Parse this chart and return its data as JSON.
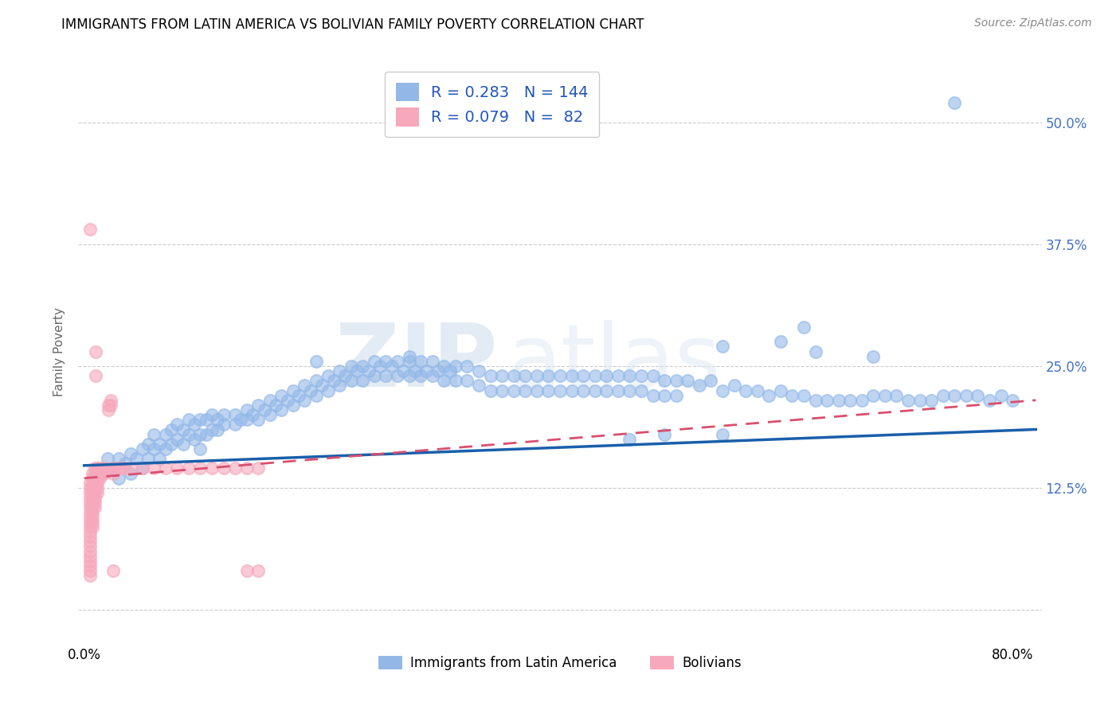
{
  "title": "IMMIGRANTS FROM LATIN AMERICA VS BOLIVIAN FAMILY POVERTY CORRELATION CHART",
  "source": "Source: ZipAtlas.com",
  "ylabel": "Family Poverty",
  "yticks": [
    0.0,
    0.125,
    0.25,
    0.375,
    0.5
  ],
  "ytick_labels": [
    "",
    "12.5%",
    "25.0%",
    "37.5%",
    "50.0%"
  ],
  "xlim": [
    -0.005,
    0.825
  ],
  "ylim": [
    -0.03,
    0.56
  ],
  "blue_R": "0.283",
  "blue_N": "144",
  "pink_R": "0.079",
  "pink_N": "82",
  "blue_color": "#93b8e8",
  "pink_color": "#f7a8bc",
  "blue_line_color": "#1a5faa",
  "pink_line_color": "#d94f6e",
  "watermark_zip": "ZIP",
  "watermark_atlas": "atlas",
  "legend_label_blue": "Immigrants from Latin America",
  "legend_label_pink": "Bolivians",
  "blue_scatter": [
    [
      0.02,
      0.155
    ],
    [
      0.025,
      0.145
    ],
    [
      0.03,
      0.155
    ],
    [
      0.03,
      0.135
    ],
    [
      0.035,
      0.15
    ],
    [
      0.04,
      0.16
    ],
    [
      0.04,
      0.14
    ],
    [
      0.045,
      0.155
    ],
    [
      0.05,
      0.165
    ],
    [
      0.05,
      0.145
    ],
    [
      0.055,
      0.17
    ],
    [
      0.055,
      0.155
    ],
    [
      0.06,
      0.18
    ],
    [
      0.06,
      0.165
    ],
    [
      0.065,
      0.17
    ],
    [
      0.065,
      0.155
    ],
    [
      0.07,
      0.18
    ],
    [
      0.07,
      0.165
    ],
    [
      0.075,
      0.185
    ],
    [
      0.075,
      0.17
    ],
    [
      0.08,
      0.19
    ],
    [
      0.08,
      0.175
    ],
    [
      0.085,
      0.185
    ],
    [
      0.085,
      0.17
    ],
    [
      0.09,
      0.195
    ],
    [
      0.09,
      0.18
    ],
    [
      0.095,
      0.19
    ],
    [
      0.095,
      0.175
    ],
    [
      0.1,
      0.195
    ],
    [
      0.1,
      0.18
    ],
    [
      0.1,
      0.165
    ],
    [
      0.105,
      0.195
    ],
    [
      0.105,
      0.18
    ],
    [
      0.11,
      0.2
    ],
    [
      0.11,
      0.185
    ],
    [
      0.115,
      0.195
    ],
    [
      0.115,
      0.185
    ],
    [
      0.12,
      0.2
    ],
    [
      0.12,
      0.19
    ],
    [
      0.13,
      0.2
    ],
    [
      0.13,
      0.19
    ],
    [
      0.135,
      0.195
    ],
    [
      0.14,
      0.205
    ],
    [
      0.14,
      0.195
    ],
    [
      0.145,
      0.2
    ],
    [
      0.15,
      0.21
    ],
    [
      0.15,
      0.195
    ],
    [
      0.155,
      0.205
    ],
    [
      0.16,
      0.215
    ],
    [
      0.16,
      0.2
    ],
    [
      0.165,
      0.21
    ],
    [
      0.17,
      0.22
    ],
    [
      0.17,
      0.205
    ],
    [
      0.175,
      0.215
    ],
    [
      0.18,
      0.225
    ],
    [
      0.18,
      0.21
    ],
    [
      0.185,
      0.22
    ],
    [
      0.19,
      0.23
    ],
    [
      0.19,
      0.215
    ],
    [
      0.195,
      0.225
    ],
    [
      0.2,
      0.235
    ],
    [
      0.2,
      0.22
    ],
    [
      0.205,
      0.23
    ],
    [
      0.21,
      0.24
    ],
    [
      0.21,
      0.225
    ],
    [
      0.215,
      0.235
    ],
    [
      0.22,
      0.245
    ],
    [
      0.22,
      0.23
    ],
    [
      0.225,
      0.24
    ],
    [
      0.23,
      0.25
    ],
    [
      0.23,
      0.235
    ],
    [
      0.235,
      0.245
    ],
    [
      0.24,
      0.25
    ],
    [
      0.24,
      0.235
    ],
    [
      0.245,
      0.245
    ],
    [
      0.25,
      0.255
    ],
    [
      0.25,
      0.24
    ],
    [
      0.255,
      0.25
    ],
    [
      0.26,
      0.255
    ],
    [
      0.26,
      0.24
    ],
    [
      0.265,
      0.25
    ],
    [
      0.27,
      0.255
    ],
    [
      0.27,
      0.24
    ],
    [
      0.275,
      0.245
    ],
    [
      0.28,
      0.255
    ],
    [
      0.28,
      0.24
    ],
    [
      0.285,
      0.245
    ],
    [
      0.29,
      0.255
    ],
    [
      0.29,
      0.24
    ],
    [
      0.295,
      0.245
    ],
    [
      0.3,
      0.255
    ],
    [
      0.3,
      0.24
    ],
    [
      0.305,
      0.245
    ],
    [
      0.31,
      0.25
    ],
    [
      0.31,
      0.235
    ],
    [
      0.315,
      0.245
    ],
    [
      0.32,
      0.25
    ],
    [
      0.32,
      0.235
    ],
    [
      0.33,
      0.25
    ],
    [
      0.33,
      0.235
    ],
    [
      0.34,
      0.245
    ],
    [
      0.34,
      0.23
    ],
    [
      0.35,
      0.24
    ],
    [
      0.35,
      0.225
    ],
    [
      0.36,
      0.24
    ],
    [
      0.36,
      0.225
    ],
    [
      0.37,
      0.24
    ],
    [
      0.37,
      0.225
    ],
    [
      0.38,
      0.24
    ],
    [
      0.38,
      0.225
    ],
    [
      0.39,
      0.24
    ],
    [
      0.39,
      0.225
    ],
    [
      0.4,
      0.24
    ],
    [
      0.4,
      0.225
    ],
    [
      0.41,
      0.24
    ],
    [
      0.41,
      0.225
    ],
    [
      0.42,
      0.24
    ],
    [
      0.42,
      0.225
    ],
    [
      0.43,
      0.24
    ],
    [
      0.43,
      0.225
    ],
    [
      0.44,
      0.24
    ],
    [
      0.44,
      0.225
    ],
    [
      0.45,
      0.24
    ],
    [
      0.45,
      0.225
    ],
    [
      0.46,
      0.24
    ],
    [
      0.46,
      0.225
    ],
    [
      0.47,
      0.24
    ],
    [
      0.47,
      0.225
    ],
    [
      0.48,
      0.24
    ],
    [
      0.48,
      0.225
    ],
    [
      0.49,
      0.24
    ],
    [
      0.49,
      0.22
    ],
    [
      0.5,
      0.235
    ],
    [
      0.5,
      0.22
    ],
    [
      0.51,
      0.235
    ],
    [
      0.51,
      0.22
    ],
    [
      0.52,
      0.235
    ],
    [
      0.53,
      0.23
    ],
    [
      0.54,
      0.235
    ],
    [
      0.55,
      0.225
    ],
    [
      0.56,
      0.23
    ],
    [
      0.57,
      0.225
    ],
    [
      0.58,
      0.225
    ],
    [
      0.59,
      0.22
    ],
    [
      0.6,
      0.225
    ],
    [
      0.61,
      0.22
    ],
    [
      0.62,
      0.22
    ],
    [
      0.63,
      0.215
    ],
    [
      0.64,
      0.215
    ],
    [
      0.65,
      0.215
    ],
    [
      0.66,
      0.215
    ],
    [
      0.67,
      0.215
    ],
    [
      0.68,
      0.22
    ],
    [
      0.69,
      0.22
    ],
    [
      0.7,
      0.22
    ],
    [
      0.71,
      0.215
    ],
    [
      0.72,
      0.215
    ],
    [
      0.73,
      0.215
    ],
    [
      0.74,
      0.22
    ],
    [
      0.75,
      0.22
    ],
    [
      0.76,
      0.22
    ],
    [
      0.77,
      0.22
    ],
    [
      0.78,
      0.215
    ],
    [
      0.79,
      0.22
    ],
    [
      0.8,
      0.215
    ],
    [
      0.55,
      0.27
    ],
    [
      0.6,
      0.275
    ],
    [
      0.63,
      0.265
    ],
    [
      0.68,
      0.26
    ],
    [
      0.2,
      0.255
    ],
    [
      0.28,
      0.26
    ],
    [
      0.62,
      0.29
    ],
    [
      0.55,
      0.18
    ],
    [
      0.47,
      0.175
    ],
    [
      0.5,
      0.18
    ],
    [
      0.75,
      0.52
    ]
  ],
  "pink_scatter": [
    [
      0.005,
      0.13
    ],
    [
      0.005,
      0.125
    ],
    [
      0.005,
      0.12
    ],
    [
      0.005,
      0.115
    ],
    [
      0.005,
      0.11
    ],
    [
      0.005,
      0.105
    ],
    [
      0.005,
      0.1
    ],
    [
      0.005,
      0.095
    ],
    [
      0.005,
      0.09
    ],
    [
      0.005,
      0.085
    ],
    [
      0.005,
      0.08
    ],
    [
      0.005,
      0.075
    ],
    [
      0.005,
      0.07
    ],
    [
      0.005,
      0.065
    ],
    [
      0.005,
      0.06
    ],
    [
      0.005,
      0.055
    ],
    [
      0.005,
      0.05
    ],
    [
      0.005,
      0.045
    ],
    [
      0.005,
      0.04
    ],
    [
      0.005,
      0.035
    ],
    [
      0.007,
      0.14
    ],
    [
      0.007,
      0.135
    ],
    [
      0.007,
      0.13
    ],
    [
      0.007,
      0.125
    ],
    [
      0.007,
      0.12
    ],
    [
      0.007,
      0.115
    ],
    [
      0.007,
      0.11
    ],
    [
      0.007,
      0.105
    ],
    [
      0.007,
      0.1
    ],
    [
      0.007,
      0.095
    ],
    [
      0.007,
      0.09
    ],
    [
      0.007,
      0.085
    ],
    [
      0.009,
      0.145
    ],
    [
      0.009,
      0.14
    ],
    [
      0.009,
      0.135
    ],
    [
      0.009,
      0.13
    ],
    [
      0.009,
      0.125
    ],
    [
      0.009,
      0.12
    ],
    [
      0.009,
      0.115
    ],
    [
      0.009,
      0.11
    ],
    [
      0.009,
      0.105
    ],
    [
      0.011,
      0.145
    ],
    [
      0.011,
      0.14
    ],
    [
      0.011,
      0.135
    ],
    [
      0.011,
      0.13
    ],
    [
      0.011,
      0.125
    ],
    [
      0.011,
      0.12
    ],
    [
      0.013,
      0.145
    ],
    [
      0.013,
      0.14
    ],
    [
      0.013,
      0.135
    ],
    [
      0.015,
      0.145
    ],
    [
      0.015,
      0.14
    ],
    [
      0.017,
      0.145
    ],
    [
      0.017,
      0.14
    ],
    [
      0.019,
      0.145
    ],
    [
      0.021,
      0.21
    ],
    [
      0.021,
      0.205
    ],
    [
      0.023,
      0.215
    ],
    [
      0.023,
      0.21
    ],
    [
      0.025,
      0.145
    ],
    [
      0.025,
      0.14
    ],
    [
      0.027,
      0.145
    ],
    [
      0.03,
      0.145
    ],
    [
      0.032,
      0.145
    ],
    [
      0.035,
      0.145
    ],
    [
      0.04,
      0.145
    ],
    [
      0.05,
      0.145
    ],
    [
      0.06,
      0.145
    ],
    [
      0.07,
      0.145
    ],
    [
      0.08,
      0.145
    ],
    [
      0.09,
      0.145
    ],
    [
      0.1,
      0.145
    ],
    [
      0.11,
      0.145
    ],
    [
      0.12,
      0.145
    ],
    [
      0.13,
      0.145
    ],
    [
      0.14,
      0.145
    ],
    [
      0.15,
      0.145
    ],
    [
      0.005,
      0.39
    ],
    [
      0.01,
      0.265
    ],
    [
      0.01,
      0.24
    ],
    [
      0.025,
      0.04
    ],
    [
      0.14,
      0.04
    ],
    [
      0.15,
      0.04
    ]
  ]
}
